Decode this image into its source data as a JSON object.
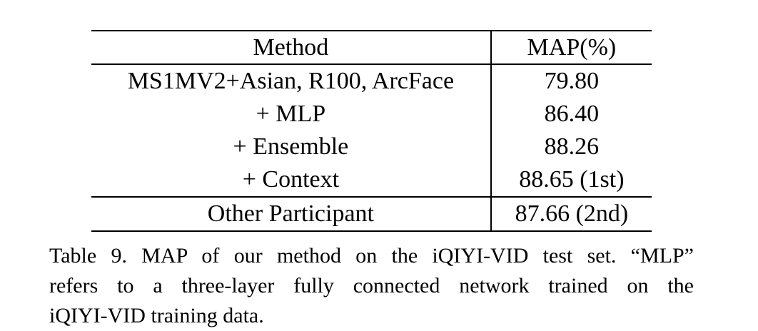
{
  "table": {
    "headers": [
      "Method",
      "MAP(%)"
    ],
    "rows": [
      {
        "method": "MS1MV2+Asian, R100, ArcFace",
        "map": "79.80"
      },
      {
        "method": "+ MLP",
        "map": "86.40"
      },
      {
        "method": "+ Ensemble",
        "map": "88.26"
      },
      {
        "method": "+ Context",
        "map": "88.65 (1st)"
      },
      {
        "method": "Other Participant",
        "map": "87.66 (2nd)"
      }
    ]
  },
  "caption": {
    "lines": [
      "Table 9. MAP of our method on the iQIYI-VID test set. “MLP”",
      "refers to a three-layer fully connected network trained on the",
      "iQIYI-VID training data."
    ]
  }
}
